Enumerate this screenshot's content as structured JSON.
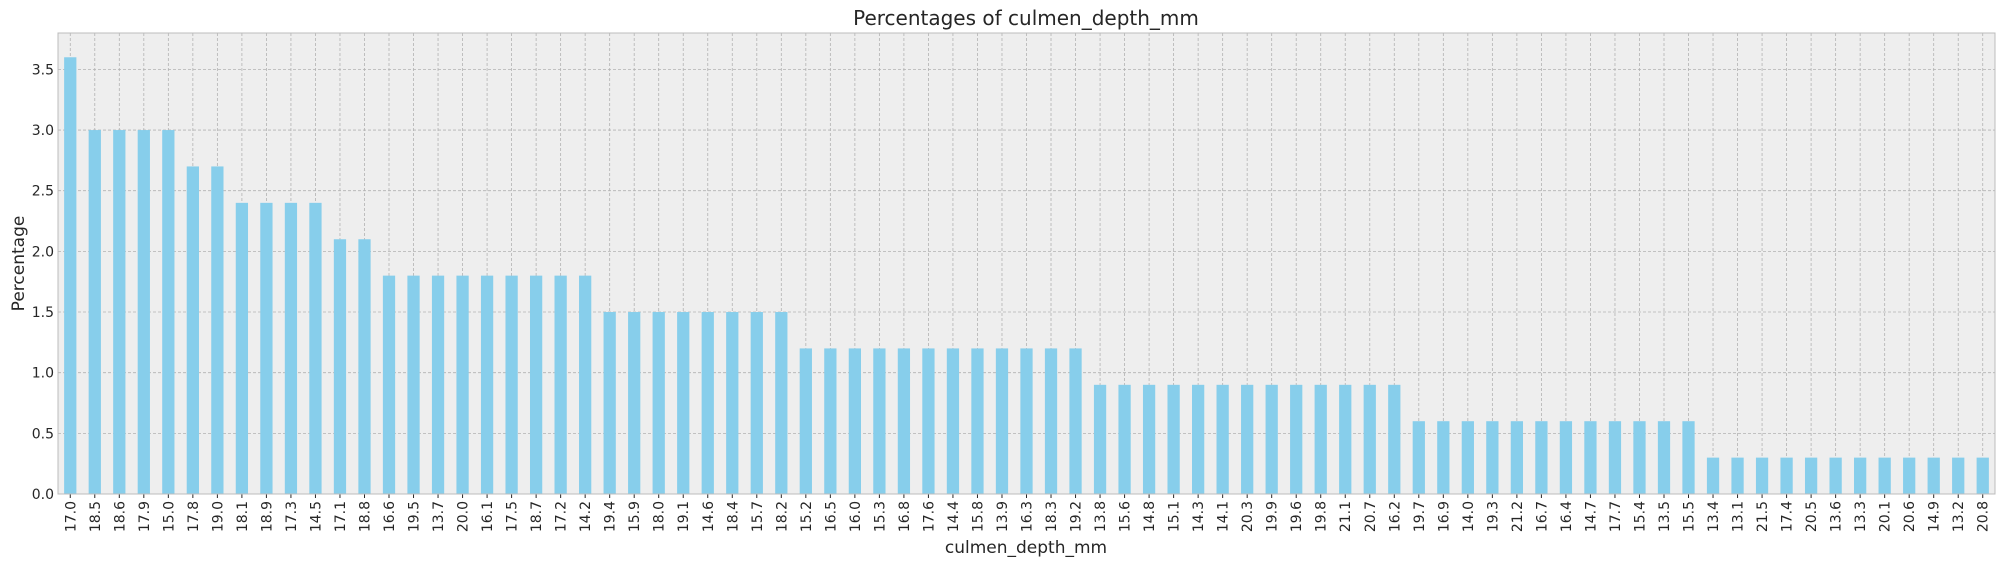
{
  "chart_data": {
    "type": "bar",
    "title": "Percentages of culmen_depth_mm",
    "xlabel": "culmen_depth_mm",
    "ylabel": "Percentage",
    "ylim": [
      0,
      3.8
    ],
    "yticks": [
      "0.0",
      "0.5",
      "1.0",
      "1.5",
      "2.0",
      "2.5",
      "3.0",
      "3.5"
    ],
    "grid": true,
    "bar_color": "#87ceeb",
    "background_color": "#eeeeee",
    "categories": [
      "17.0",
      "18.5",
      "18.6",
      "17.9",
      "15.0",
      "17.8",
      "19.0",
      "18.1",
      "18.9",
      "17.3",
      "14.5",
      "17.1",
      "18.8",
      "16.6",
      "19.5",
      "13.7",
      "20.0",
      "16.1",
      "17.5",
      "18.7",
      "17.2",
      "14.2",
      "19.4",
      "15.9",
      "18.0",
      "19.1",
      "14.6",
      "18.4",
      "15.7",
      "18.2",
      "15.2",
      "16.5",
      "16.0",
      "15.3",
      "16.8",
      "17.6",
      "14.4",
      "15.8",
      "13.9",
      "16.3",
      "18.3",
      "19.2",
      "13.8",
      "15.6",
      "14.8",
      "15.1",
      "14.3",
      "14.1",
      "20.3",
      "19.9",
      "19.6",
      "19.8",
      "21.1",
      "20.7",
      "16.2",
      "19.7",
      "16.9",
      "14.0",
      "19.3",
      "21.2",
      "16.7",
      "16.4",
      "14.7",
      "17.7",
      "15.4",
      "13.5",
      "15.5",
      "13.4",
      "13.1",
      "21.5",
      "17.4",
      "20.5",
      "13.6",
      "13.3",
      "20.1",
      "20.6",
      "14.9",
      "13.2",
      "20.8"
    ],
    "values": [
      3.6,
      3.0,
      3.0,
      3.0,
      3.0,
      2.7,
      2.7,
      2.4,
      2.4,
      2.4,
      2.4,
      2.1,
      2.1,
      1.8,
      1.8,
      1.8,
      1.8,
      1.8,
      1.8,
      1.8,
      1.8,
      1.8,
      1.5,
      1.5,
      1.5,
      1.5,
      1.5,
      1.5,
      1.5,
      1.5,
      1.2,
      1.2,
      1.2,
      1.2,
      1.2,
      1.2,
      1.2,
      1.2,
      1.2,
      1.2,
      1.2,
      1.2,
      0.9,
      0.9,
      0.9,
      0.9,
      0.9,
      0.9,
      0.9,
      0.9,
      0.9,
      0.9,
      0.9,
      0.9,
      0.9,
      0.6,
      0.6,
      0.6,
      0.6,
      0.6,
      0.6,
      0.6,
      0.6,
      0.6,
      0.6,
      0.6,
      0.6,
      0.3,
      0.3,
      0.3,
      0.3,
      0.3,
      0.3,
      0.3,
      0.3,
      0.3,
      0.3,
      0.3,
      0.3
    ]
  }
}
